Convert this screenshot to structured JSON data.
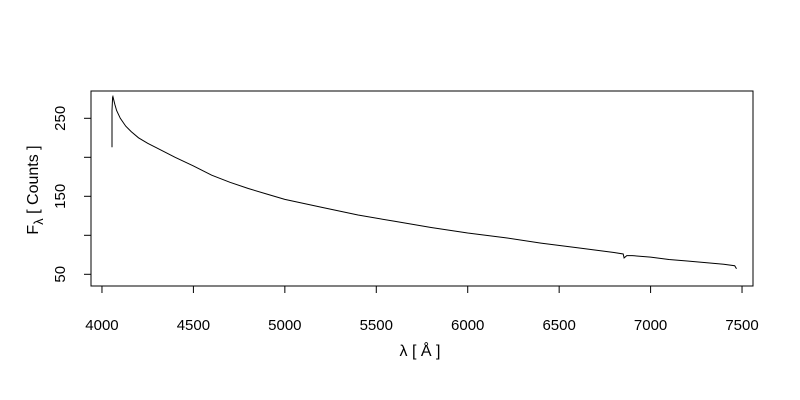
{
  "chart_data": {
    "type": "line",
    "title": "",
    "xlabel": "λ [ Å ]",
    "ylabel_main": "F",
    "ylabel_sub": "λ",
    "ylabel_rest": " [ Counts ]",
    "xlim": [
      3940,
      7560
    ],
    "ylim": [
      35,
      285
    ],
    "xticks": [
      4000,
      4500,
      5000,
      5500,
      6000,
      6500,
      7000,
      7500
    ],
    "yticks_major": [
      50,
      150,
      250
    ],
    "yticks_minor": [
      100,
      200
    ],
    "grid": false,
    "legend": "none",
    "line_color": "#000000",
    "series": [
      {
        "x": [
          4055,
          4055,
          4058,
          4060,
          4070,
          4080,
          4100,
          4130,
          4160,
          4200,
          4250,
          4300,
          4400,
          4500,
          4600,
          4700,
          4800,
          4900,
          5000,
          5200,
          5400,
          5600,
          5800,
          6000,
          6200,
          6400,
          6600,
          6800,
          6850,
          6855,
          6870,
          6900,
          7000,
          7100,
          7200,
          7300,
          7400,
          7460,
          7470
        ],
        "y": [
          213,
          260,
          277,
          278,
          268,
          260,
          250,
          240,
          233,
          225,
          218,
          212,
          200,
          189,
          177,
          168,
          160,
          153,
          146,
          136,
          126,
          118,
          110,
          103,
          97,
          90,
          84,
          78,
          76,
          71,
          74,
          74,
          72,
          69,
          67,
          65,
          63,
          61,
          57
        ]
      }
    ]
  }
}
